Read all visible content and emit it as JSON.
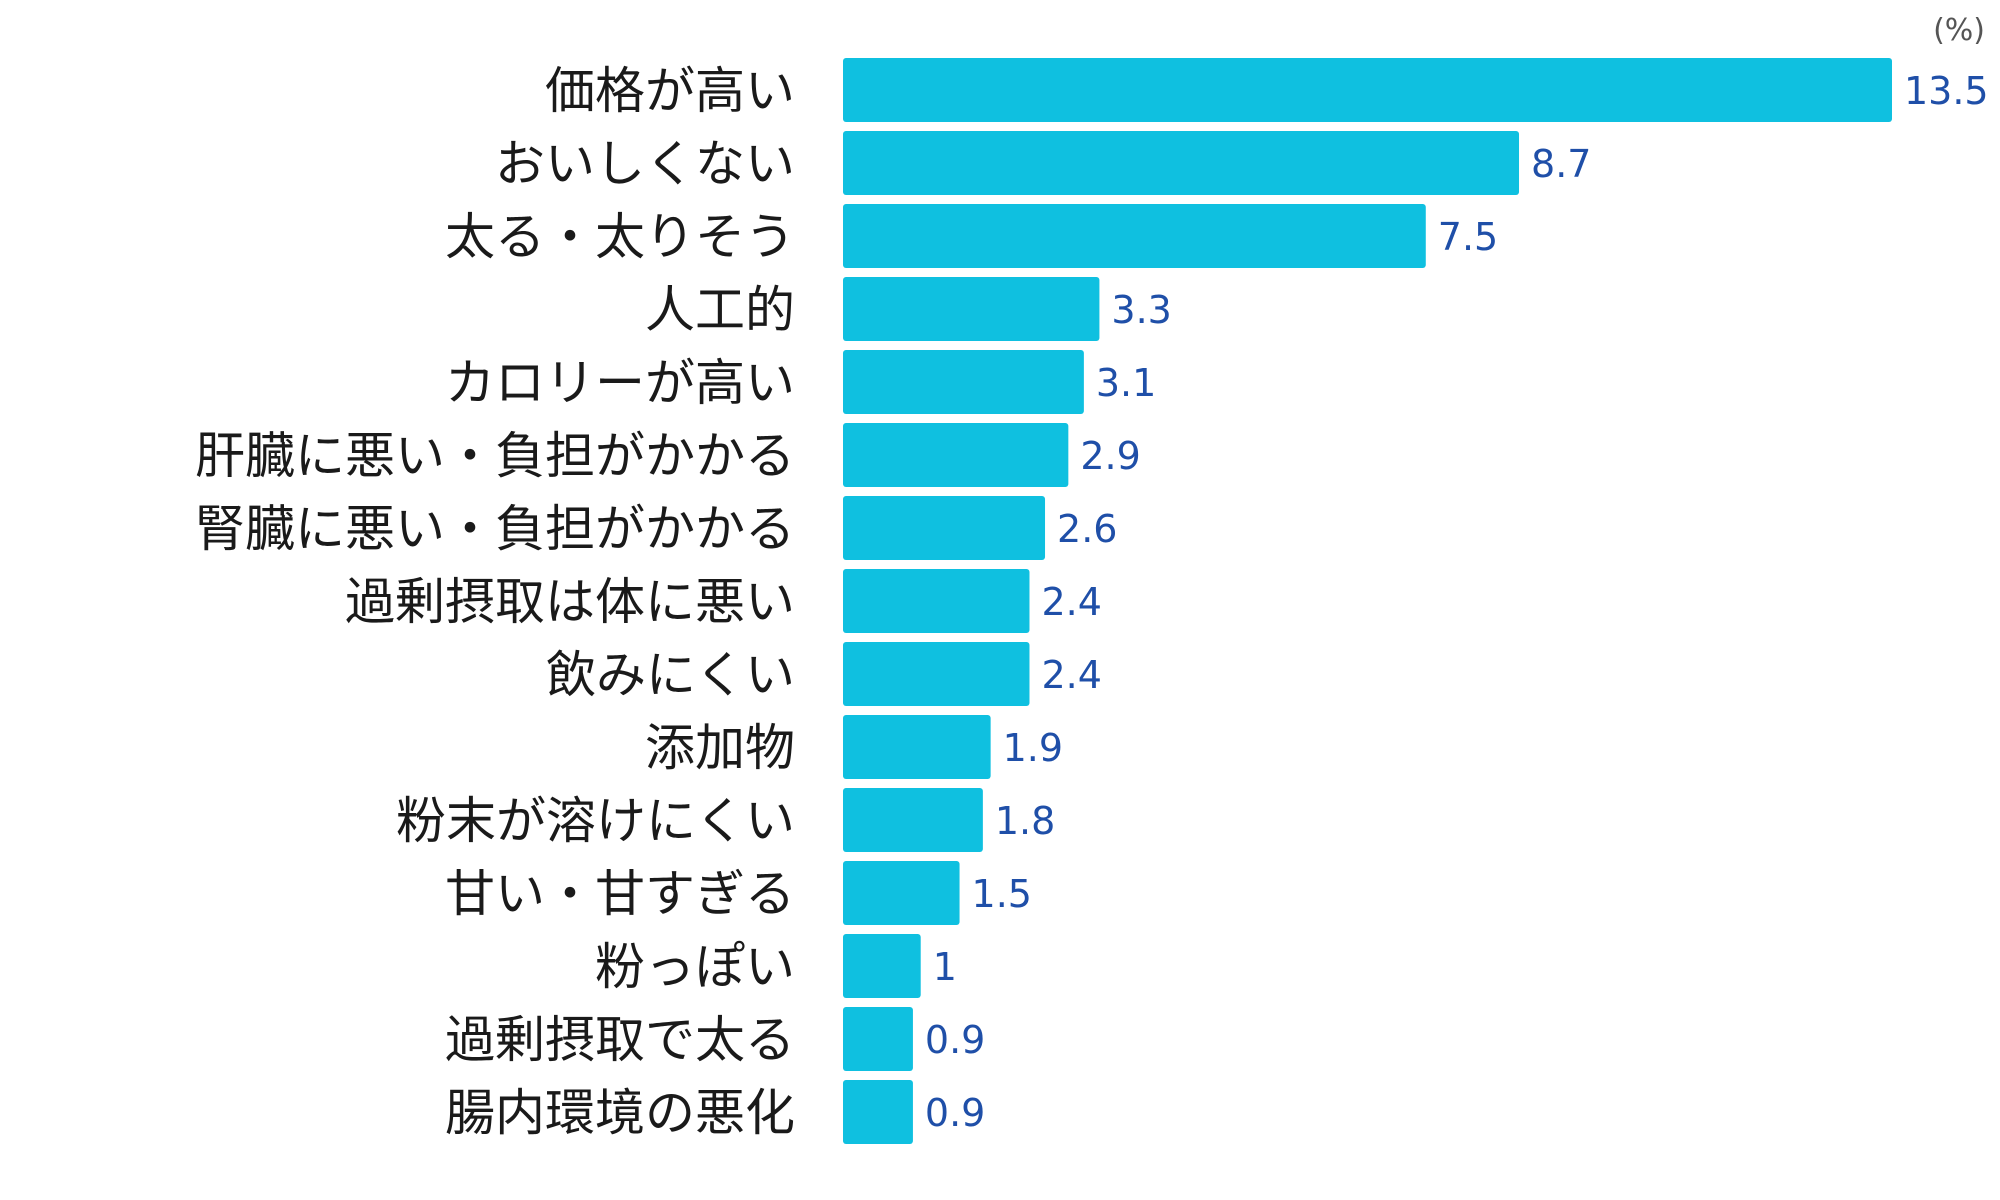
{
  "chart_data": {
    "type": "bar",
    "orientation": "horizontal",
    "unit": "(%)",
    "categories": [
      "価格が高い",
      "おいしくない",
      "太る・太りそう",
      "人工的",
      "カロリーが高い",
      "肝臓に悪い・負担がかかる",
      "腎臓に悪い・負担がかかる",
      "過剰摂取は体に悪い",
      "飲みにくい",
      "添加物",
      "粉末が溶けにくい",
      "甘い・甘すぎる",
      "粉っぽい",
      "過剰摂取で太る",
      "腸内環境の悪化"
    ],
    "values": [
      13.5,
      8.7,
      7.5,
      3.3,
      3.1,
      2.9,
      2.6,
      2.4,
      2.4,
      1.9,
      1.8,
      1.5,
      1,
      0.9,
      0.9
    ],
    "value_labels": [
      "13.5",
      "8.7",
      "7.5",
      "3.3",
      "3.1",
      "2.9",
      "2.6",
      "2.4",
      "2.4",
      "1.9",
      "1.8",
      "1.5",
      "1",
      "0.9",
      "0.9"
    ],
    "xlim": [
      0,
      13.5
    ],
    "grid": false,
    "colors": {
      "bar": "#0fc0e0",
      "value_label": "#1f4fa8",
      "category_label": "#1a1a1a",
      "unit": "#555555"
    }
  }
}
